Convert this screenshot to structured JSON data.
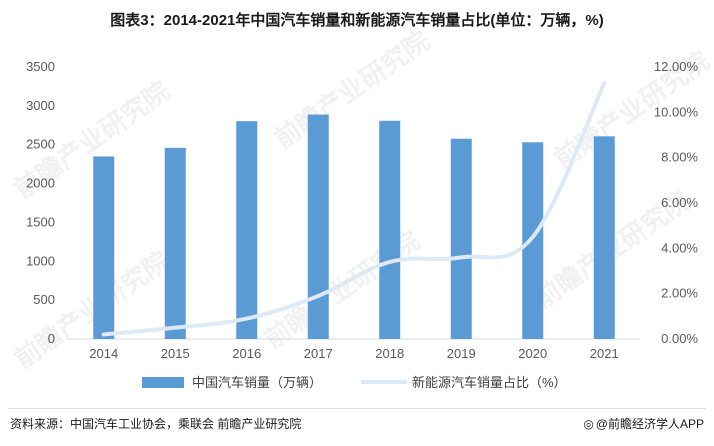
{
  "title": "图表3：2014-2021年中国汽车销量和新能源汽车销量占比(单位：万辆，%)",
  "colors": {
    "bar": "#5b9bd5",
    "line": "#dde9f7",
    "axis": "#d9d9d9"
  },
  "chart_data": {
    "type": "bar",
    "categories": [
      "2014",
      "2015",
      "2016",
      "2017",
      "2018",
      "2019",
      "2020",
      "2021"
    ],
    "series": [
      {
        "name": "中国汽车销量（万辆）",
        "type": "bar",
        "axis": "left",
        "values": [
          2349,
          2460,
          2803,
          2888,
          2808,
          2577,
          2531,
          2608
        ]
      },
      {
        "name": "新能源汽车销量占比（%）",
        "type": "line",
        "axis": "right",
        "values": [
          0.2,
          0.5,
          0.9,
          1.9,
          3.4,
          3.6,
          4.5,
          11.3
        ]
      }
    ],
    "yticks_left": [
      "0",
      "500",
      "1000",
      "1500",
      "2000",
      "2500",
      "3000",
      "3500"
    ],
    "yticks_right": [
      "0.00%",
      "2.00%",
      "4.00%",
      "6.00%",
      "8.00%",
      "10.00%",
      "12.00%"
    ],
    "ylim_left": [
      0,
      3500
    ],
    "ylim_right": [
      0,
      12
    ],
    "grid": false,
    "legend": "bottom"
  },
  "footer": {
    "source": "资料来源：中国汽车工业协会，乘联会 前瞻产业研究院",
    "brand": "@前瞻经济学人APP"
  },
  "watermark": "前瞻产业研究院"
}
